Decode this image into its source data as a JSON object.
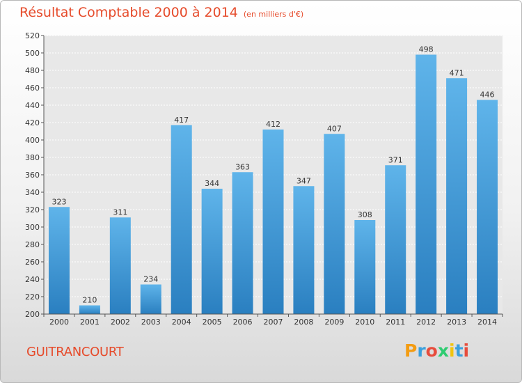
{
  "title": "Résultat Comptable 2000 à 2014",
  "subtitle": "(en milliers d'€)",
  "city": "GUITRANCOURT",
  "brand": {
    "letters": [
      "P",
      "r",
      "o",
      "x",
      "i",
      "t",
      "i"
    ],
    "colors": [
      "#f39c12",
      "#3aa0dd",
      "#e74c3c",
      "#2ecc71",
      "#f1c40f",
      "#3aa0dd",
      "#e74c3c"
    ]
  },
  "chart_data": {
    "type": "bar",
    "title": "Résultat Comptable 2000 à 2014",
    "ylabel": "en milliers d'€",
    "xlabel": "",
    "categories": [
      "2000",
      "2001",
      "2002",
      "2003",
      "2004",
      "2005",
      "2006",
      "2007",
      "2008",
      "2009",
      "2010",
      "2011",
      "2012",
      "2013",
      "2014"
    ],
    "values": [
      323,
      210,
      311,
      234,
      417,
      344,
      363,
      412,
      347,
      407,
      308,
      371,
      498,
      471,
      446
    ],
    "ylim": [
      200,
      520
    ],
    "yticks": [
      200,
      220,
      240,
      260,
      280,
      300,
      320,
      340,
      360,
      380,
      400,
      420,
      440,
      460,
      480,
      500,
      520
    ],
    "grid": true,
    "bar_color_top": "#5fb4ea",
    "bar_color_bottom": "#2a7fc0"
  }
}
